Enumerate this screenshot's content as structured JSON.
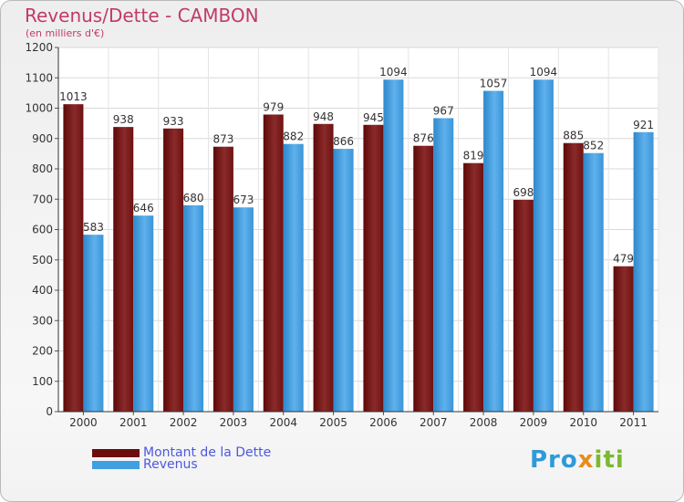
{
  "header": {
    "title": "Revenus/Dette - CAMBON",
    "subtitle": "(en milliers d'€)"
  },
  "chart_data": {
    "type": "bar",
    "categories": [
      "2000",
      "2001",
      "2002",
      "2003",
      "2004",
      "2005",
      "2006",
      "2007",
      "2008",
      "2009",
      "2010",
      "2011"
    ],
    "series": [
      {
        "name": "Montant de la Dette",
        "color": "#7a1a1a",
        "values": [
          1013,
          938,
          933,
          873,
          979,
          948,
          945,
          876,
          819,
          698,
          885,
          479
        ]
      },
      {
        "name": "Revenus",
        "color": "#3f9fe0",
        "values": [
          583,
          646,
          680,
          673,
          882,
          866,
          1094,
          967,
          1057,
          1094,
          852,
          921
        ]
      }
    ],
    "ylim": [
      0,
      1200
    ],
    "yticks": [
      0,
      100,
      200,
      300,
      400,
      500,
      600,
      700,
      800,
      900,
      1000,
      1100,
      1200
    ],
    "grid": true,
    "legend_position": "bottom-left"
  },
  "legend": {
    "items": [
      {
        "label": "Montant de la Dette",
        "color": "#6b0d0d"
      },
      {
        "label": "Revenus",
        "color": "#3f9fe0"
      }
    ]
  },
  "brand": {
    "part1": "Pro",
    "part2": "x",
    "part3": "iti"
  }
}
